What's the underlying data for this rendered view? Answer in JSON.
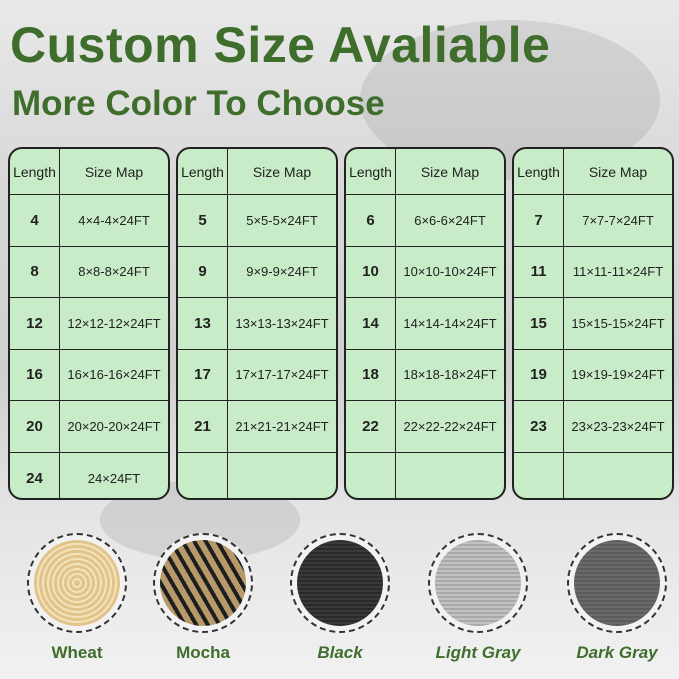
{
  "title": "Custom Size Avaliable",
  "subtitle": "More Color To Choose",
  "table_headers": {
    "length": "Length",
    "size_map": "Size Map"
  },
  "tables": [
    {
      "rows": [
        [
          "4",
          "4×4-4×24FT"
        ],
        [
          "8",
          "8×8-8×24FT"
        ],
        [
          "12",
          "12×12-12×24FT"
        ],
        [
          "16",
          "16×16-16×24FT"
        ],
        [
          "20",
          "20×20-20×24FT"
        ],
        [
          "24",
          "24×24FT"
        ]
      ]
    },
    {
      "rows": [
        [
          "5",
          "5×5-5×24FT"
        ],
        [
          "9",
          "9×9-9×24FT"
        ],
        [
          "13",
          "13×13-13×24FT"
        ],
        [
          "17",
          "17×17-17×24FT"
        ],
        [
          "21",
          "21×21-21×24FT"
        ],
        [
          "",
          ""
        ]
      ]
    },
    {
      "rows": [
        [
          "6",
          "6×6-6×24FT"
        ],
        [
          "10",
          "10×10-10×24FT"
        ],
        [
          "14",
          "14×14-14×24FT"
        ],
        [
          "18",
          "18×18-18×24FT"
        ],
        [
          "22",
          "22×22-22×24FT"
        ],
        [
          "",
          ""
        ]
      ]
    },
    {
      "rows": [
        [
          "7",
          "7×7-7×24FT"
        ],
        [
          "11",
          "11×11-11×24FT"
        ],
        [
          "15",
          "15×15-15×24FT"
        ],
        [
          "19",
          "19×19-19×24FT"
        ],
        [
          "23",
          "23×23-23×24FT"
        ],
        [
          "",
          ""
        ]
      ]
    }
  ],
  "colors": [
    {
      "name": "Wheat",
      "swatch": "#e2c48a"
    },
    {
      "name": "Mocha",
      "swatch": "#b89a6a"
    },
    {
      "name": "Black",
      "swatch": "#2a2a2a"
    },
    {
      "name": "Light Gray",
      "swatch": "#a9a9a9"
    },
    {
      "name": "Dark Gray",
      "swatch": "#5c5c5c"
    }
  ],
  "accent_color": "#3f6e2c",
  "table_fill": "#c7ecc7"
}
